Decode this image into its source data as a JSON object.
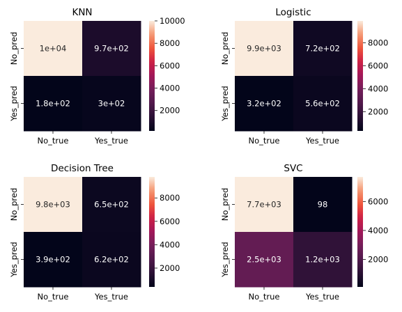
{
  "chart_data": [
    {
      "type": "heatmap",
      "title": "KNN",
      "x_labels": [
        "No_true",
        "Yes_true"
      ],
      "y_labels": [
        "No_pred",
        "Yes_pred"
      ],
      "values": [
        [
          10000,
          970
        ],
        [
          180,
          300
        ]
      ],
      "annotations": [
        [
          "1e+04",
          "9.7e+02"
        ],
        [
          "1.8e+02",
          "3e+02"
        ]
      ],
      "colorbar": {
        "vmin": 180,
        "vmax": 10000,
        "ticks": [
          2000,
          4000,
          6000,
          8000,
          10000
        ],
        "tick_labels": [
          "2000",
          "4000",
          "6000",
          "8000",
          "10000"
        ]
      }
    },
    {
      "type": "heatmap",
      "title": "Logistic",
      "x_labels": [
        "No_true",
        "Yes_true"
      ],
      "y_labels": [
        "No_pred",
        "Yes_pred"
      ],
      "values": [
        [
          9900,
          720
        ],
        [
          320,
          560
        ]
      ],
      "annotations": [
        [
          "9.9e+03",
          "7.2e+02"
        ],
        [
          "3.2e+02",
          "5.6e+02"
        ]
      ],
      "colorbar": {
        "vmin": 320,
        "vmax": 9900,
        "ticks": [
          2000,
          4000,
          6000,
          8000
        ],
        "tick_labels": [
          "2000",
          "4000",
          "6000",
          "8000"
        ]
      }
    },
    {
      "type": "heatmap",
      "title": "Decision Tree",
      "x_labels": [
        "No_true",
        "Yes_true"
      ],
      "y_labels": [
        "No_pred",
        "Yes_pred"
      ],
      "values": [
        [
          9800,
          650
        ],
        [
          390,
          620
        ]
      ],
      "annotations": [
        [
          "9.8e+03",
          "6.5e+02"
        ],
        [
          "3.9e+02",
          "6.2e+02"
        ]
      ],
      "colorbar": {
        "vmin": 390,
        "vmax": 9800,
        "ticks": [
          2000,
          4000,
          6000,
          8000
        ],
        "tick_labels": [
          "2000",
          "4000",
          "6000",
          "8000"
        ]
      }
    },
    {
      "type": "heatmap",
      "title": "SVC",
      "x_labels": [
        "No_true",
        "Yes_true"
      ],
      "y_labels": [
        "No_pred",
        "Yes_pred"
      ],
      "values": [
        [
          7700,
          98
        ],
        [
          2500,
          1200
        ]
      ],
      "annotations": [
        [
          "7.7e+03",
          "98"
        ],
        [
          "2.5e+03",
          "1.2e+03"
        ]
      ],
      "colorbar": {
        "vmin": 98,
        "vmax": 7700,
        "ticks": [
          2000,
          4000,
          6000
        ],
        "tick_labels": [
          "2000",
          "4000",
          "6000"
        ]
      }
    }
  ]
}
